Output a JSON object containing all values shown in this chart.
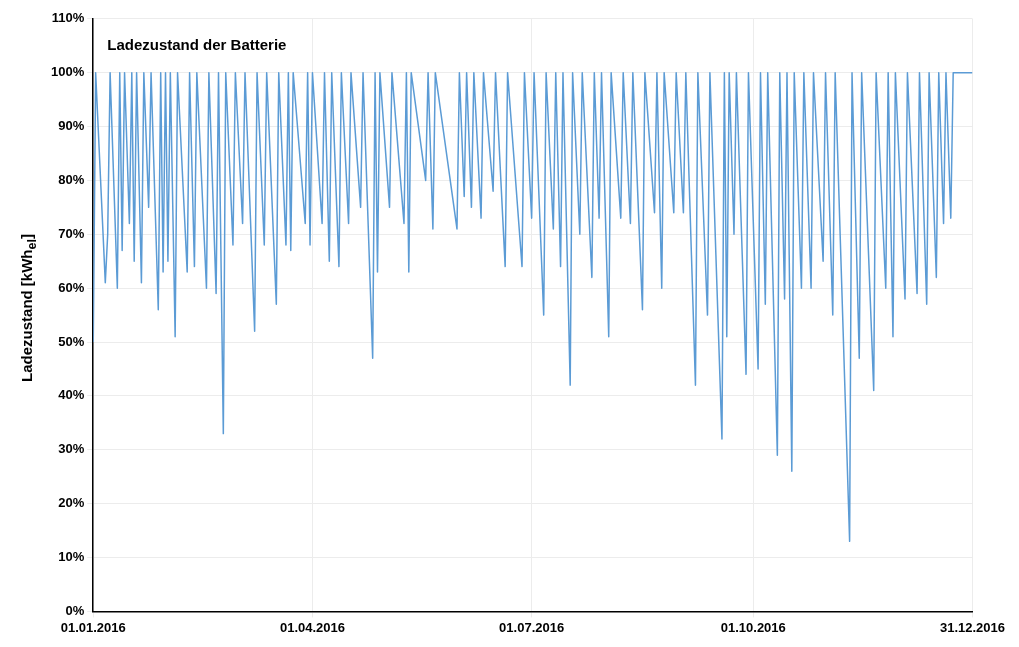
{
  "chart_data": {
    "type": "line",
    "title": "Ladezustand der Batterie",
    "ylabel": "Ladezustand [kWh$_{el}$]",
    "xlim": [
      "2016-01-01",
      "2016-12-31"
    ],
    "xticks": [
      {
        "value": "2016-01-01",
        "label": "01.01.2016"
      },
      {
        "value": "2016-04-01",
        "label": "01.04.2016"
      },
      {
        "value": "2016-07-01",
        "label": "01.07.2016"
      },
      {
        "value": "2016-10-01",
        "label": "01.10.2016"
      },
      {
        "value": "2016-12-31",
        "label": "31.12.2016"
      }
    ],
    "ylim": [
      0,
      110
    ],
    "yticks": [
      {
        "value": 0,
        "label": "0%"
      },
      {
        "value": 10,
        "label": "10%"
      },
      {
        "value": 20,
        "label": "20%"
      },
      {
        "value": 30,
        "label": "30%"
      },
      {
        "value": 40,
        "label": "40%"
      },
      {
        "value": 50,
        "label": "50%"
      },
      {
        "value": 60,
        "label": "60%"
      },
      {
        "value": 70,
        "label": "70%"
      },
      {
        "value": 80,
        "label": "80%"
      },
      {
        "value": 90,
        "label": "90%"
      },
      {
        "value": 100,
        "label": "100%"
      },
      {
        "value": 110,
        "label": "110%"
      }
    ],
    "grid": true,
    "legend": false,
    "marker": "none",
    "line_style": "solid",
    "series": [
      {
        "color": "#5b9bd5",
        "x": [
          "2016-01-01",
          "2016-01-02",
          "2016-01-06",
          "2016-01-07",
          "2016-01-08",
          "2016-01-11",
          "2016-01-12",
          "2016-01-13",
          "2016-01-14",
          "2016-01-16",
          "2016-01-17",
          "2016-01-18",
          "2016-01-19",
          "2016-01-21",
          "2016-01-22",
          "2016-01-24",
          "2016-01-25",
          "2016-01-28",
          "2016-01-29",
          "2016-01-30",
          "2016-01-31",
          "2016-02-01",
          "2016-02-02",
          "2016-02-04",
          "2016-02-05",
          "2016-02-09",
          "2016-02-10",
          "2016-02-12",
          "2016-02-13",
          "2016-02-17",
          "2016-02-18",
          "2016-02-21",
          "2016-02-22",
          "2016-02-24",
          "2016-02-25",
          "2016-02-28",
          "2016-02-29",
          "2016-03-03",
          "2016-03-04",
          "2016-03-08",
          "2016-03-09",
          "2016-03-12",
          "2016-03-13",
          "2016-03-17",
          "2016-03-18",
          "2016-03-21",
          "2016-03-22",
          "2016-03-23",
          "2016-03-24",
          "2016-03-29",
          "2016-03-30",
          "2016-03-31",
          "2016-04-01",
          "2016-04-05",
          "2016-04-06",
          "2016-04-08",
          "2016-04-09",
          "2016-04-12",
          "2016-04-13",
          "2016-04-16",
          "2016-04-17",
          "2016-04-21",
          "2016-04-22",
          "2016-04-26",
          "2016-04-27",
          "2016-04-28",
          "2016-04-29",
          "2016-05-03",
          "2016-05-04",
          "2016-05-09",
          "2016-05-10",
          "2016-05-11",
          "2016-05-12",
          "2016-05-18",
          "2016-05-19",
          "2016-05-21",
          "2016-05-22",
          "2016-05-31",
          "2016-06-01",
          "2016-06-03",
          "2016-06-04",
          "2016-06-06",
          "2016-06-07",
          "2016-06-10",
          "2016-06-11",
          "2016-06-15",
          "2016-06-16",
          "2016-06-20",
          "2016-06-21",
          "2016-06-27",
          "2016-06-28",
          "2016-07-01",
          "2016-07-02",
          "2016-07-06",
          "2016-07-07",
          "2016-07-10",
          "2016-07-11",
          "2016-07-13",
          "2016-07-14",
          "2016-07-17",
          "2016-07-18",
          "2016-07-21",
          "2016-07-22",
          "2016-07-26",
          "2016-07-27",
          "2016-07-29",
          "2016-07-30",
          "2016-08-02",
          "2016-08-03",
          "2016-08-07",
          "2016-08-08",
          "2016-08-11",
          "2016-08-12",
          "2016-08-16",
          "2016-08-17",
          "2016-08-21",
          "2016-08-22",
          "2016-08-24",
          "2016-08-25",
          "2016-08-29",
          "2016-08-30",
          "2016-09-02",
          "2016-09-03",
          "2016-09-07",
          "2016-09-08",
          "2016-09-12",
          "2016-09-13",
          "2016-09-18",
          "2016-09-19",
          "2016-09-20",
          "2016-09-21",
          "2016-09-23",
          "2016-09-24",
          "2016-09-28",
          "2016-09-29",
          "2016-10-03",
          "2016-10-04",
          "2016-10-06",
          "2016-10-07",
          "2016-10-11",
          "2016-10-12",
          "2016-10-14",
          "2016-10-15",
          "2016-10-17",
          "2016-10-18",
          "2016-10-21",
          "2016-10-22",
          "2016-10-25",
          "2016-10-26",
          "2016-10-30",
          "2016-10-31",
          "2016-11-03",
          "2016-11-04",
          "2016-11-10",
          "2016-11-11",
          "2016-11-14",
          "2016-11-15",
          "2016-11-20",
          "2016-11-21",
          "2016-11-25",
          "2016-11-26",
          "2016-11-28",
          "2016-11-29",
          "2016-12-03",
          "2016-12-04",
          "2016-12-08",
          "2016-12-09",
          "2016-12-12",
          "2016-12-13",
          "2016-12-16",
          "2016-12-17",
          "2016-12-19",
          "2016-12-20",
          "2016-12-22",
          "2016-12-23",
          "2016-12-31"
        ],
        "values": [
          50,
          100,
          61,
          70,
          100,
          60,
          100,
          67,
          100,
          72,
          100,
          65,
          100,
          61,
          100,
          75,
          100,
          56,
          100,
          63,
          100,
          65,
          100,
          51,
          100,
          63,
          100,
          64,
          100,
          60,
          100,
          59,
          100,
          33,
          100,
          68,
          100,
          72,
          100,
          52,
          100,
          68,
          100,
          57,
          100,
          68,
          100,
          67,
          100,
          72,
          100,
          68,
          100,
          72,
          100,
          65,
          100,
          64,
          100,
          72,
          100,
          75,
          100,
          47,
          100,
          63,
          100,
          75,
          100,
          72,
          100,
          63,
          100,
          80,
          100,
          71,
          100,
          71,
          100,
          77,
          100,
          75,
          100,
          73,
          100,
          78,
          100,
          64,
          100,
          64,
          100,
          73,
          100,
          55,
          100,
          71,
          100,
          64,
          100,
          42,
          100,
          70,
          100,
          62,
          100,
          73,
          100,
          51,
          100,
          73,
          100,
          72,
          100,
          56,
          100,
          74,
          100,
          60,
          100,
          74,
          100,
          74,
          100,
          42,
          100,
          55,
          100,
          32,
          100,
          51,
          100,
          70,
          100,
          44,
          100,
          45,
          100,
          57,
          100,
          29,
          100,
          58,
          100,
          26,
          100,
          60,
          100,
          60,
          100,
          65,
          100,
          55,
          100,
          13,
          100,
          47,
          100,
          41,
          100,
          60,
          100,
          51,
          100,
          58,
          100,
          59,
          100,
          57,
          100,
          62,
          100,
          72,
          100,
          73,
          100,
          100
        ]
      }
    ]
  }
}
